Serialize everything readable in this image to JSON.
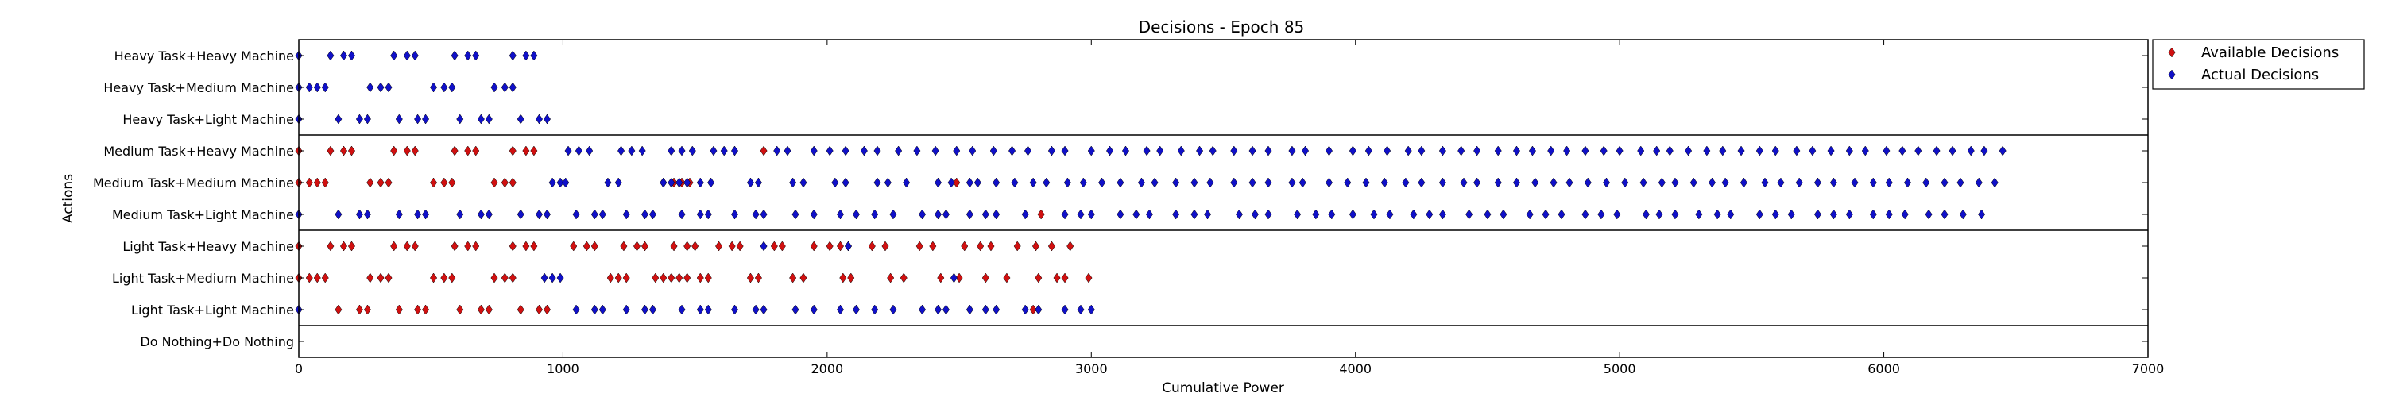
{
  "chart_data": {
    "type": "scatter",
    "title": "Decisions - Epoch 85",
    "xlabel": "Cumulative Power",
    "ylabel": "Actions",
    "xlim": [
      0,
      7000
    ],
    "xticks": [
      "0",
      "1000",
      "2000",
      "3000",
      "4000",
      "5000",
      "6000",
      "7000"
    ],
    "categories": [
      "Heavy Task+Heavy Machine",
      "Heavy Task+Medium Machine",
      "Heavy Task+Light Machine",
      "Medium Task+Heavy Machine",
      "Medium Task+Medium Machine",
      "Medium Task+Light Machine",
      "Light Task+Heavy Machine",
      "Light Task+Medium Machine",
      "Light Task+Light Machine",
      "Do Nothing+Do Nothing"
    ],
    "separators_after_row": [
      2,
      5,
      8
    ],
    "legend_position": "outside-right",
    "series": [
      {
        "name": "Available Decisions",
        "color": "#d01010",
        "points": {
          "Medium Task+Heavy Machine": [
            0,
            120,
            170,
            200,
            360,
            410,
            440,
            590,
            640,
            670,
            810,
            860,
            890,
            1760
          ],
          "Medium Task+Medium Machine": [
            0,
            40,
            70,
            100,
            270,
            310,
            340,
            510,
            550,
            580,
            740,
            780,
            810,
            1380,
            1420,
            1450,
            1480,
            2490
          ],
          "Medium Task+Light Machine": [
            2810
          ],
          "Light Task+Heavy Machine": [
            0,
            120,
            170,
            200,
            360,
            410,
            440,
            590,
            640,
            670,
            810,
            860,
            890,
            1040,
            1090,
            1120,
            1230,
            1280,
            1310,
            1420,
            1470,
            1500,
            1590,
            1640,
            1670,
            1800,
            1830,
            1950,
            2010,
            2050,
            2080,
            2170,
            2220,
            2350,
            2400,
            2520,
            2580,
            2620,
            2720,
            2790,
            2850,
            2920
          ],
          "Light Task+Medium Machine": [
            0,
            40,
            70,
            100,
            270,
            310,
            340,
            510,
            550,
            580,
            740,
            780,
            810,
            1180,
            1210,
            1240,
            1350,
            1380,
            1410,
            1440,
            1470,
            1520,
            1550,
            1710,
            1740,
            1870,
            1910,
            2060,
            2090,
            2240,
            2290,
            2430,
            2500,
            2600,
            2680,
            2800,
            2870,
            2900,
            2990
          ],
          "Light Task+Light Machine": [
            150,
            230,
            260,
            380,
            450,
            480,
            610,
            690,
            720,
            840,
            910,
            940,
            2780
          ]
        }
      },
      {
        "name": "Actual Decisions",
        "color": "#1010c8",
        "points": {
          "Heavy Task+Heavy Machine": [
            0,
            120,
            170,
            200,
            360,
            410,
            440,
            590,
            640,
            670,
            810,
            860,
            890
          ],
          "Heavy Task+Medium Machine": [
            0,
            40,
            70,
            100,
            270,
            310,
            340,
            510,
            550,
            580,
            740,
            780,
            810
          ],
          "Heavy Task+Light Machine": [
            0,
            150,
            230,
            260,
            380,
            450,
            480,
            610,
            690,
            720,
            840,
            910,
            940
          ],
          "Medium Task+Heavy Machine": [
            1020,
            1060,
            1100,
            1220,
            1260,
            1300,
            1410,
            1450,
            1490,
            1570,
            1610,
            1650,
            1810,
            1850,
            1950,
            2010,
            2070,
            2140,
            2190,
            2270,
            2340,
            2410,
            2490,
            2550,
            2630,
            2700,
            2760,
            2850,
            2900,
            3000,
            3070,
            3130,
            3210,
            3260,
            3340,
            3410,
            3460,
            3540,
            3610,
            3670,
            3760,
            3810,
            3900,
            3990,
            4050,
            4120,
            4200,
            4250,
            4330,
            4400,
            4460,
            4540,
            4610,
            4670,
            4740,
            4800,
            4870,
            4940,
            5000,
            5080,
            5140,
            5190,
            5260,
            5330,
            5390,
            5460,
            5530,
            5590,
            5670,
            5730,
            5800,
            5870,
            5930,
            6010,
            6070,
            6130,
            6200,
            6260,
            6330,
            6380,
            6450
          ],
          "Medium Task+Medium Machine": [
            960,
            990,
            1010,
            1170,
            1210,
            1380,
            1410,
            1440,
            1470,
            1520,
            1560,
            1710,
            1740,
            1870,
            1910,
            2030,
            2070,
            2190,
            2230,
            2300,
            2420,
            2470,
            2540,
            2570,
            2640,
            2710,
            2780,
            2830,
            2910,
            2970,
            3040,
            3110,
            3190,
            3240,
            3320,
            3390,
            3450,
            3540,
            3610,
            3670,
            3760,
            3800,
            3900,
            3970,
            4040,
            4110,
            4190,
            4250,
            4330,
            4410,
            4460,
            4540,
            4610,
            4680,
            4750,
            4810,
            4880,
            4950,
            5020,
            5090,
            5160,
            5210,
            5280,
            5350,
            5400,
            5470,
            5550,
            5610,
            5680,
            5750,
            5810,
            5890,
            5960,
            6020,
            6090,
            6160,
            6230,
            6290,
            6360,
            6420
          ],
          "Medium Task+Light Machine": [
            0,
            150,
            230,
            260,
            380,
            450,
            480,
            610,
            690,
            720,
            840,
            910,
            940,
            1050,
            1120,
            1150,
            1240,
            1310,
            1340,
            1450,
            1520,
            1550,
            1650,
            1730,
            1760,
            1880,
            1950,
            2050,
            2110,
            2180,
            2250,
            2360,
            2420,
            2450,
            2540,
            2600,
            2640,
            2750,
            2900,
            2960,
            3000,
            3110,
            3170,
            3220,
            3320,
            3390,
            3440,
            3560,
            3620,
            3670,
            3780,
            3850,
            3910,
            3990,
            4070,
            4130,
            4220,
            4280,
            4330,
            4430,
            4500,
            4560,
            4660,
            4720,
            4780,
            4870,
            4930,
            4990,
            5100,
            5150,
            5210,
            5300,
            5370,
            5420,
            5530,
            5590,
            5650,
            5750,
            5810,
            5870,
            5960,
            6020,
            6080,
            6170,
            6230,
            6300,
            6370
          ],
          "Light Task+Heavy Machine": [
            1760,
            2080
          ],
          "Light Task+Medium Machine": [
            930,
            960,
            990,
            2480
          ],
          "Light Task+Light Machine": [
            0,
            1050,
            1120,
            1150,
            1240,
            1310,
            1340,
            1450,
            1520,
            1550,
            1650,
            1730,
            1760,
            1880,
            1950,
            2050,
            2110,
            2180,
            2250,
            2360,
            2420,
            2450,
            2540,
            2600,
            2640,
            2750,
            2800,
            2900,
            2960,
            3000
          ]
        }
      }
    ]
  }
}
